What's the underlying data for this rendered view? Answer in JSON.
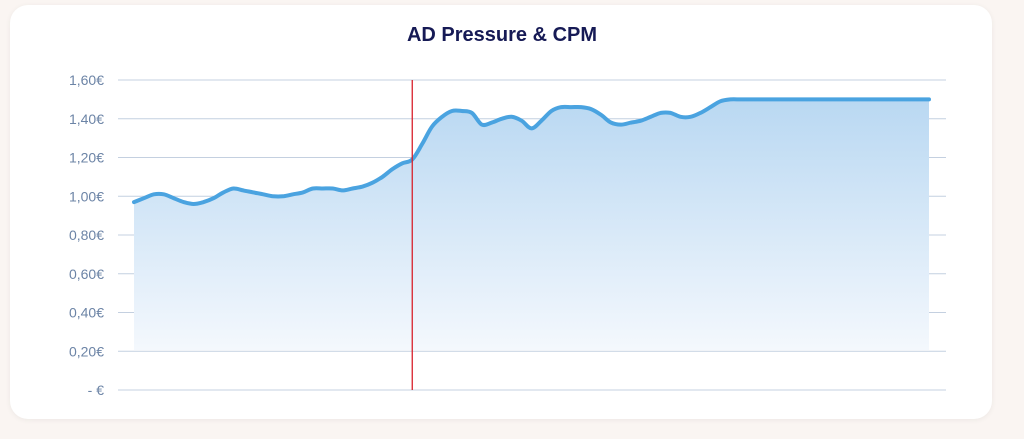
{
  "chart_data": {
    "type": "area",
    "title": "AD Pressure & CPM",
    "xlabel": "",
    "ylabel": "",
    "ylim": [
      0,
      1.6
    ],
    "grid": true,
    "y_ticks": [
      {
        "value": 1.6,
        "label": "1,60€"
      },
      {
        "value": 1.4,
        "label": "1,40€"
      },
      {
        "value": 1.2,
        "label": "1,20€"
      },
      {
        "value": 1.0,
        "label": "1,00€"
      },
      {
        "value": 0.8,
        "label": "0,80€"
      },
      {
        "value": 0.6,
        "label": "0,60€"
      },
      {
        "value": 0.4,
        "label": "0,40€"
      },
      {
        "value": 0.2,
        "label": "0,20€"
      },
      {
        "value": 0.0,
        "label": "- €"
      }
    ],
    "x": [
      0,
      1,
      2,
      3,
      4,
      5,
      6,
      7,
      8,
      9,
      10,
      11,
      12,
      13,
      14,
      15,
      16,
      17,
      18,
      19,
      20,
      21,
      22,
      23,
      24,
      25,
      26,
      27,
      28,
      29,
      30,
      31,
      32,
      33,
      34,
      35,
      36,
      37,
      38,
      39,
      40,
      41,
      42,
      43,
      44,
      45,
      46,
      47,
      48,
      49,
      50,
      51,
      52,
      53,
      54,
      55,
      56,
      57,
      58,
      59,
      60,
      61,
      62,
      63,
      64,
      65,
      66,
      67,
      68,
      69,
      70,
      71,
      72,
      73,
      74,
      75,
      76,
      77,
      78,
      79,
      80
    ],
    "values": [
      0.97,
      0.99,
      1.01,
      1.01,
      0.99,
      0.97,
      0.96,
      0.97,
      0.99,
      1.02,
      1.04,
      1.03,
      1.02,
      1.01,
      1.0,
      1.0,
      1.01,
      1.02,
      1.04,
      1.04,
      1.04,
      1.03,
      1.04,
      1.05,
      1.07,
      1.1,
      1.14,
      1.17,
      1.19,
      1.27,
      1.36,
      1.41,
      1.44,
      1.44,
      1.43,
      1.37,
      1.38,
      1.4,
      1.41,
      1.39,
      1.35,
      1.39,
      1.44,
      1.46,
      1.46,
      1.46,
      1.45,
      1.42,
      1.38,
      1.37,
      1.38,
      1.39,
      1.41,
      1.43,
      1.43,
      1.41,
      1.41,
      1.43,
      1.46,
      1.49,
      1.5,
      1.5,
      1.5,
      1.5,
      1.5,
      1.5,
      1.5,
      1.5,
      1.5,
      1.5,
      1.5,
      1.5,
      1.5,
      1.5,
      1.5,
      1.5,
      1.5,
      1.5,
      1.5,
      1.5,
      1.5
    ],
    "marker_x": 28,
    "colors": {
      "line": "#4aa3e0",
      "area_top": "#b9d8f2",
      "area_bottom": "#f4f8fd",
      "marker": "#d8202a",
      "grid": "#c4d0e0"
    }
  }
}
